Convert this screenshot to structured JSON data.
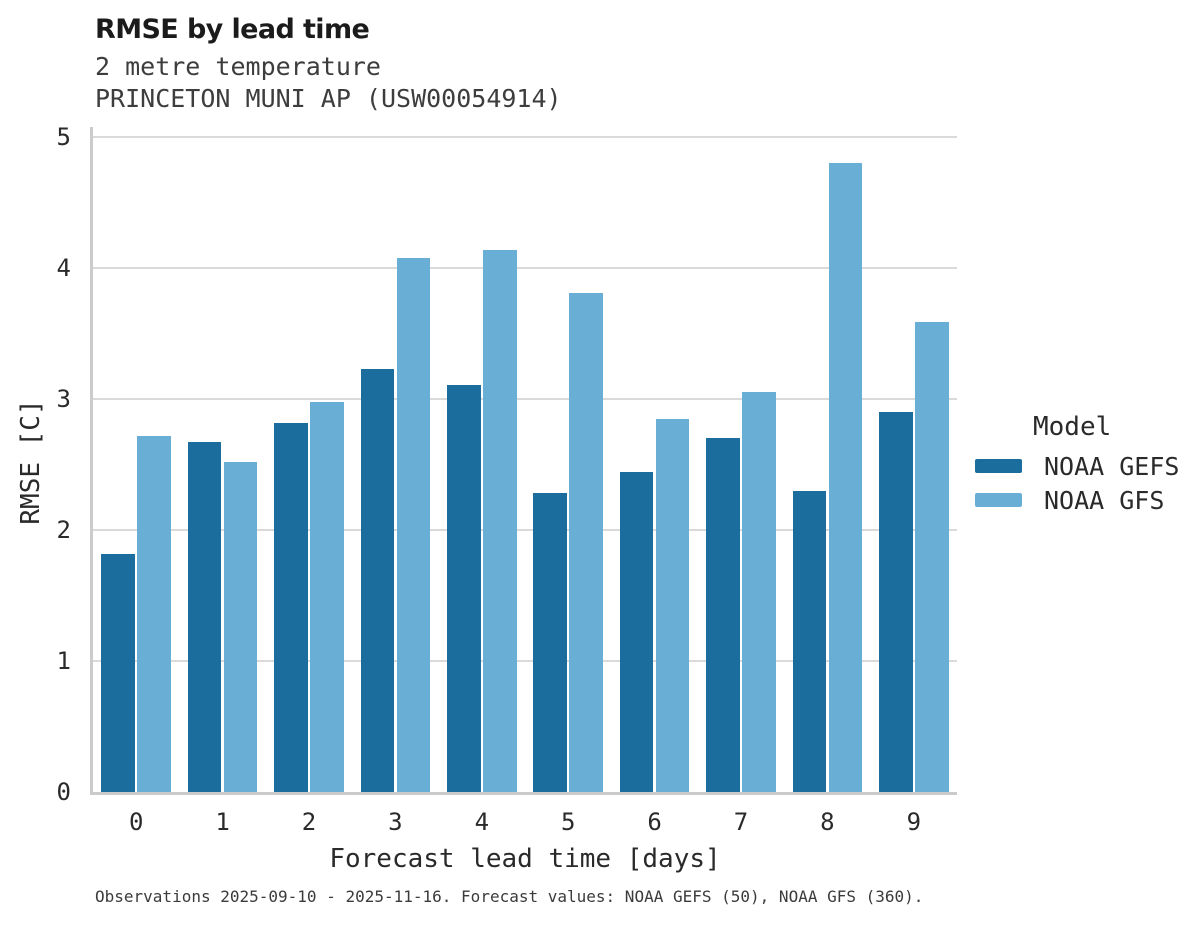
{
  "header": {
    "title": "RMSE by lead time",
    "subtitle_line1": "2 metre temperature",
    "subtitle_line2": "PRINCETON MUNI AP (USW00054914)"
  },
  "chart_data": {
    "type": "bar",
    "title": "RMSE by lead time",
    "subtitle": [
      "2 metre temperature",
      "PRINCETON MUNI AP (USW00054914)"
    ],
    "xlabel": "Forecast lead time [days]",
    "ylabel": "RMSE [C]",
    "categories": [
      "0",
      "1",
      "2",
      "3",
      "4",
      "5",
      "6",
      "7",
      "8",
      "9"
    ],
    "series": [
      {
        "name": "NOAA GEFS",
        "color": "#1b6d9e",
        "values": [
          1.82,
          2.67,
          2.82,
          3.23,
          3.11,
          2.28,
          2.44,
          2.7,
          2.3,
          2.9
        ]
      },
      {
        "name": "NOAA GFS",
        "color": "#69afd5",
        "values": [
          2.72,
          2.52,
          2.98,
          4.08,
          4.14,
          3.81,
          2.85,
          3.05,
          4.8,
          3.59
        ]
      }
    ],
    "ylim": [
      0,
      5
    ],
    "yticks": [
      0,
      1,
      2,
      3,
      4,
      5
    ],
    "grid": "horizontal",
    "legend_title": "Model",
    "legend_position": "right"
  },
  "legend": {
    "title": "Model",
    "items": [
      {
        "label": "NOAA GEFS",
        "color": "#1b6d9e"
      },
      {
        "label": "NOAA GFS",
        "color": "#69afd5"
      }
    ]
  },
  "footer": {
    "note": "Observations 2025-09-10 - 2025-11-16. Forecast values: NOAA GEFS (50), NOAA GFS (360)."
  },
  "colors": {
    "gefs_dark_blue": "#1b6d9e",
    "gfs_light_blue": "#69afd5",
    "gridline": "#dadada",
    "spine": "#cbcbcb"
  }
}
